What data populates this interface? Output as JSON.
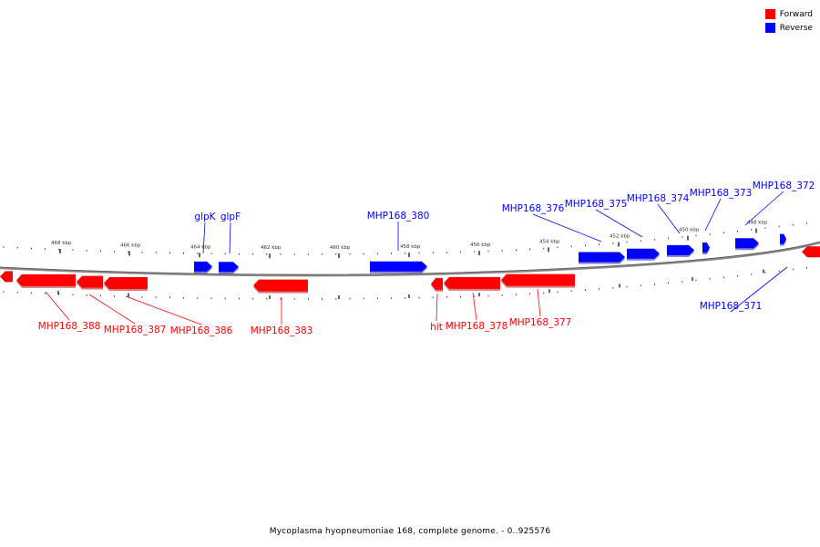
{
  "legend": {
    "forward_label": "Forward",
    "reverse_label": "Reverse",
    "forward_color": "#ff0000",
    "reverse_color": "#0000ff"
  },
  "caption": "Mycoplasma hyopneumoniae 168, complete genome. - 0..925576",
  "scale": {
    "tick_labels": [
      "448 kbp",
      "450 kbp",
      "452 kbp",
      "454 kbp",
      "456 kbp",
      "458 kbp",
      "460 kbp",
      "462 kbp",
      "464 kbp",
      "466 kbp",
      "468 kbp"
    ]
  },
  "genes": [
    {
      "name": "MHP168_388",
      "strand": "forward",
      "color": "#ff0000",
      "labeled": true
    },
    {
      "name": "MHP168_387",
      "strand": "forward",
      "color": "#ff0000",
      "labeled": true
    },
    {
      "name": "MHP168_386",
      "strand": "forward",
      "color": "#ff0000",
      "labeled": true
    },
    {
      "name": "MHP168_383",
      "strand": "forward",
      "color": "#ff0000",
      "labeled": true
    },
    {
      "name": "hit",
      "strand": "forward",
      "color": "#ff0000",
      "labeled": true
    },
    {
      "name": "MHP168_378",
      "strand": "forward",
      "color": "#ff0000",
      "labeled": true
    },
    {
      "name": "MHP168_377",
      "strand": "forward",
      "color": "#ff0000",
      "labeled": true
    },
    {
      "name": "glpK",
      "strand": "reverse",
      "color": "#0000ff",
      "labeled": true
    },
    {
      "name": "glpF",
      "strand": "reverse",
      "color": "#0000ff",
      "labeled": true
    },
    {
      "name": "MHP168_380",
      "strand": "reverse",
      "color": "#0000ff",
      "labeled": true
    },
    {
      "name": "MHP168_376",
      "strand": "reverse",
      "color": "#0000ff",
      "labeled": true
    },
    {
      "name": "MHP168_375",
      "strand": "reverse",
      "color": "#0000ff",
      "labeled": true
    },
    {
      "name": "MHP168_374",
      "strand": "reverse",
      "color": "#0000ff",
      "labeled": true
    },
    {
      "name": "MHP168_373",
      "strand": "reverse",
      "color": "#0000ff",
      "labeled": true
    },
    {
      "name": "MHP168_372",
      "strand": "reverse",
      "color": "#0000ff",
      "labeled": true
    },
    {
      "name": "MHP168_371",
      "strand": "reverse",
      "color": "#0000ff",
      "labeled": true
    }
  ]
}
